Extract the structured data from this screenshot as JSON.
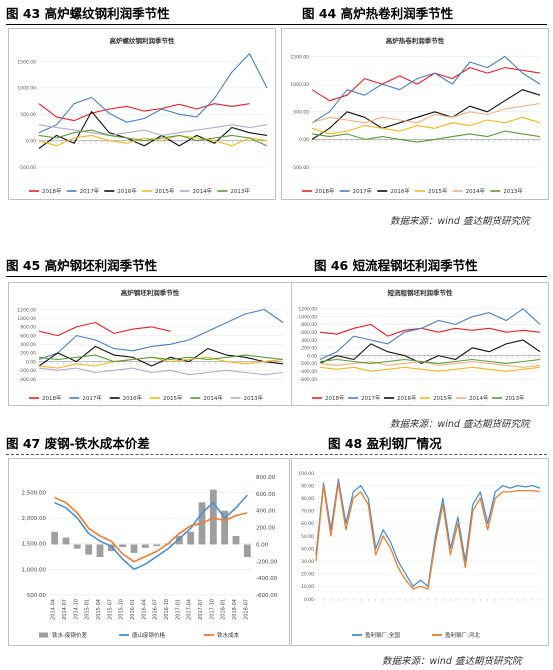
{
  "sections": [
    {
      "fig_num": "图 43",
      "caption": "高炉螺纹钢利润季节性"
    },
    {
      "fig_num": "图 44",
      "caption": "高炉热卷利润季节性"
    },
    {
      "fig_num": "图 45",
      "caption": "高炉钢坯利润季节性"
    },
    {
      "fig_num": "图 46",
      "caption": "短流程钢坯利润季节性"
    },
    {
      "fig_num": "图 47",
      "caption": "废钢-铁水成本价差"
    },
    {
      "fig_num": "图 48",
      "caption": "盈利钢厂情况"
    }
  ],
  "sources": [
    "数据来源：wind  盛达期货研究院",
    "数据来源：wind  盛达期货研究院",
    "数据来源：wind  盛达期货研究院"
  ],
  "colors": {
    "y2018": "#e8202a",
    "y2017": "#4a7fc1",
    "y2016": "#111111",
    "y2015": "#f2b81c",
    "y2014": "#f4b183",
    "y2014b": "#b4a7d6",
    "y2013": "#5a9a3a",
    "bar": "#9e9e9e",
    "blue": "#4a90d0",
    "orange": "#ed7d31"
  },
  "chart_data": [
    {
      "type": "line",
      "title": "高炉螺纹钢利润季节性",
      "yticks": [
        "1500.00",
        "1000.00",
        "500.00",
        "0.00",
        "-500.00"
      ],
      "ylim": [
        -500,
        1700
      ],
      "x": [
        0,
        4,
        8,
        12,
        16,
        20,
        24,
        28,
        32,
        36,
        40,
        44,
        48,
        52
      ],
      "series": [
        {
          "name": "2018年",
          "color": "#e8202a",
          "values": [
            700,
            450,
            380,
            520,
            600,
            650,
            560,
            610,
            690,
            600,
            700,
            650,
            700,
            null
          ]
        },
        {
          "name": "2017年",
          "color": "#4a7fc1",
          "values": [
            150,
            300,
            700,
            820,
            520,
            350,
            420,
            600,
            500,
            450,
            800,
            1300,
            1650,
            1000
          ]
        },
        {
          "name": "2016年",
          "color": "#111111",
          "values": [
            -150,
            100,
            -50,
            550,
            150,
            50,
            -100,
            100,
            -100,
            100,
            -50,
            250,
            150,
            100
          ]
        },
        {
          "name": "2015年",
          "color": "#f2b81c",
          "values": [
            0,
            -100,
            50,
            100,
            0,
            -50,
            50,
            0,
            100,
            50,
            0,
            -100,
            50,
            0
          ]
        },
        {
          "name": "2014年",
          "color": "#b4a7d6",
          "values": [
            300,
            250,
            200,
            150,
            100,
            150,
            200,
            100,
            150,
            200,
            250,
            300,
            250,
            300
          ]
        },
        {
          "name": "2013年",
          "color": "#5a9a3a",
          "values": [
            100,
            50,
            150,
            200,
            100,
            50,
            0,
            50,
            100,
            0,
            50,
            100,
            50,
            -100
          ]
        }
      ]
    },
    {
      "type": "line",
      "title": "高炉热卷利润季节性",
      "yticks": [
        "1500.00",
        "1000.00",
        "500.00",
        "0.00",
        "-500.00"
      ],
      "ylim": [
        -500,
        1600
      ],
      "x": [
        0,
        4,
        8,
        12,
        16,
        20,
        24,
        28,
        32,
        36,
        40,
        44,
        48,
        52
      ],
      "series": [
        {
          "name": "2018年",
          "color": "#e8202a",
          "values": [
            900,
            700,
            800,
            1100,
            1000,
            1150,
            1000,
            1200,
            1100,
            1300,
            1200,
            1300,
            1250,
            1200
          ]
        },
        {
          "name": "2017年",
          "color": "#4a7fc1",
          "values": [
            300,
            500,
            900,
            800,
            1000,
            900,
            1100,
            1200,
            1000,
            1400,
            1300,
            1500,
            1200,
            1000
          ]
        },
        {
          "name": "2016年",
          "color": "#111111",
          "values": [
            0,
            200,
            500,
            400,
            200,
            300,
            400,
            500,
            400,
            600,
            500,
            700,
            900,
            800
          ]
        },
        {
          "name": "2015年",
          "color": "#f2b81c",
          "values": [
            200,
            100,
            150,
            250,
            200,
            150,
            250,
            200,
            300,
            250,
            350,
            300,
            400,
            300
          ]
        },
        {
          "name": "2014年",
          "color": "#f4b183",
          "values": [
            300,
            400,
            350,
            300,
            400,
            350,
            300,
            450,
            400,
            500,
            450,
            550,
            600,
            650
          ]
        },
        {
          "name": "2013年",
          "color": "#5a9a3a",
          "values": [
            100,
            50,
            100,
            0,
            50,
            0,
            -50,
            0,
            50,
            100,
            50,
            150,
            100,
            50
          ]
        }
      ]
    },
    {
      "type": "line",
      "title": "高炉钢坯利润季节性",
      "yticks": [
        "1200.00",
        "1000.00",
        "800.00",
        "600.00",
        "400.00",
        "200.00",
        "0.00",
        "-200.00",
        "-400.00"
      ],
      "ylim": [
        -400,
        1350
      ],
      "x": [
        0,
        4,
        8,
        12,
        16,
        20,
        24,
        28,
        32,
        36,
        40,
        44,
        48,
        52
      ],
      "series": [
        {
          "name": "2018年",
          "color": "#e8202a",
          "values": [
            700,
            600,
            800,
            900,
            650,
            750,
            800,
            700,
            null,
            null,
            null,
            null,
            null,
            null
          ]
        },
        {
          "name": "2017年",
          "color": "#4a7fc1",
          "values": [
            50,
            200,
            600,
            500,
            300,
            250,
            350,
            400,
            500,
            700,
            900,
            1100,
            1200,
            900
          ]
        },
        {
          "name": "2016年",
          "color": "#111111",
          "values": [
            -100,
            200,
            0,
            350,
            150,
            100,
            -100,
            100,
            0,
            300,
            150,
            100,
            0,
            -50
          ]
        },
        {
          "name": "2015年",
          "color": "#f2b81c",
          "values": [
            -100,
            -150,
            -50,
            -100,
            0,
            50,
            100,
            0,
            50,
            100,
            0,
            -50,
            0,
            50
          ]
        },
        {
          "name": "2014年",
          "color": "#5a9a3a",
          "values": [
            100,
            50,
            100,
            150,
            0,
            50,
            100,
            50,
            100,
            50,
            100,
            150,
            100,
            50
          ]
        },
        {
          "name": "2013年",
          "color": "#b4a7d6",
          "values": [
            -150,
            -200,
            -150,
            -250,
            -200,
            -150,
            -250,
            -200,
            -300,
            -250,
            -200,
            -250,
            -300,
            -250
          ]
        }
      ]
    },
    {
      "type": "line",
      "title": "短流程钢坯利润季节性",
      "yticks": [
        "1200.00",
        "1000.00",
        "800.00",
        "600.00",
        "400.00",
        "200.00",
        "0.00",
        "-200.00",
        "-400.00",
        "-600.00"
      ],
      "ylim": [
        -600,
        1350
      ],
      "x": [
        0,
        4,
        8,
        12,
        16,
        20,
        24,
        28,
        32,
        36,
        40,
        44,
        48,
        52
      ],
      "series": [
        {
          "name": "2018年",
          "color": "#e8202a",
          "values": [
            600,
            550,
            700,
            800,
            500,
            650,
            700,
            600,
            700,
            650,
            700,
            600,
            650,
            600
          ]
        },
        {
          "name": "2017年",
          "color": "#4a7fc1",
          "values": [
            -100,
            100,
            500,
            400,
            300,
            600,
            700,
            900,
            800,
            1000,
            1100,
            900,
            1200,
            800
          ]
        },
        {
          "name": "2016年",
          "color": "#111111",
          "values": [
            -200,
            0,
            -100,
            300,
            100,
            0,
            -200,
            0,
            -100,
            200,
            100,
            300,
            400,
            100
          ]
        },
        {
          "name": "2015年",
          "color": "#f2b81c",
          "values": [
            -300,
            -350,
            -300,
            -400,
            -350,
            -300,
            -350,
            -400,
            -350,
            -300,
            -350,
            -400,
            -350,
            -300
          ]
        },
        {
          "name": "2014年",
          "color": "#f4b183",
          "values": [
            -200,
            -250,
            -200,
            -150,
            -250,
            -200,
            -150,
            -250,
            -200,
            -150,
            -200,
            -250,
            -300,
            -250
          ]
        },
        {
          "name": "2013年",
          "color": "#5a9a3a",
          "values": [
            -150,
            -100,
            -150,
            -200,
            -150,
            -100,
            -150,
            -200,
            -150,
            -100,
            -150,
            -200,
            -150,
            -100
          ]
        }
      ]
    },
    {
      "type": "bar+line",
      "title": "",
      "categories": [
        "2014-04",
        "2014-07",
        "2014-10",
        "2015-01",
        "2015-04",
        "2015-07",
        "2015-10",
        "2016-01",
        "2016-04",
        "2016-07",
        "2016-10",
        "2017-01",
        "2017-04",
        "2017-07",
        "2017-10",
        "2018-01",
        "2018-04",
        "2018-07"
      ],
      "yticks_left": [
        "2,500.00",
        "2,000.00",
        "1,500.00",
        "1,000.00",
        "500.00"
      ],
      "ylim_left": [
        500,
        2800
      ],
      "yticks_right": [
        "800.00",
        "600.00",
        "400.00",
        "200.00",
        "0.00",
        "-200.00",
        "-400.00",
        "-600.00"
      ],
      "ylim_right": [
        -600,
        800
      ],
      "series": [
        {
          "name": "铁水-废钢价差",
          "color": "#9e9e9e",
          "axis": "right",
          "values": [
            150,
            80,
            -50,
            -120,
            -150,
            -80,
            -30,
            -100,
            -40,
            -20,
            10,
            100,
            150,
            500,
            650,
            400,
            100,
            -150
          ]
        },
        {
          "name": "唐山废钢价格",
          "color": "#4a90d0",
          "axis": "left",
          "values": [
            2300,
            2200,
            2000,
            1700,
            1550,
            1450,
            1200,
            1000,
            1100,
            1250,
            1400,
            1600,
            1800,
            2100,
            2300,
            2000,
            2200,
            2450
          ]
        },
        {
          "name": "铁水成本",
          "color": "#ed7d31",
          "axis": "left",
          "values": [
            2400,
            2300,
            2100,
            1800,
            1650,
            1550,
            1300,
            1150,
            1250,
            1350,
            1500,
            1700,
            1850,
            1900,
            2000,
            1950,
            2050,
            2100
          ]
        }
      ]
    },
    {
      "type": "line",
      "title": "",
      "yticks": [
        "100.00",
        "90.00",
        "80.00",
        "70.00",
        "60.00",
        "50.00",
        "40.00",
        "30.00",
        "20.00",
        "10.00",
        "0.00"
      ],
      "ylim": [
        0,
        100
      ],
      "x": [
        0,
        2,
        4,
        6,
        8,
        10,
        12,
        14,
        16,
        18,
        20,
        22,
        24,
        26,
        28,
        30,
        32,
        34,
        36,
        38,
        40,
        42,
        44,
        46,
        48,
        50,
        52,
        54,
        56,
        58,
        60
      ],
      "series": [
        {
          "name": "盈利钢厂:全国",
          "color": "#4a90d0",
          "values": [
            35,
            92,
            55,
            95,
            60,
            85,
            90,
            80,
            40,
            55,
            45,
            30,
            20,
            10,
            15,
            10,
            50,
            80,
            40,
            65,
            30,
            75,
            85,
            60,
            85,
            90,
            88,
            90,
            89,
            90,
            88
          ]
        },
        {
          "name": "盈利钢厂:河北",
          "color": "#ed7d31",
          "values": [
            30,
            90,
            50,
            92,
            55,
            80,
            85,
            75,
            35,
            50,
            40,
            25,
            15,
            8,
            10,
            8,
            45,
            75,
            35,
            60,
            25,
            70,
            80,
            55,
            80,
            85,
            85,
            86,
            86,
            86,
            85
          ]
        }
      ]
    }
  ]
}
